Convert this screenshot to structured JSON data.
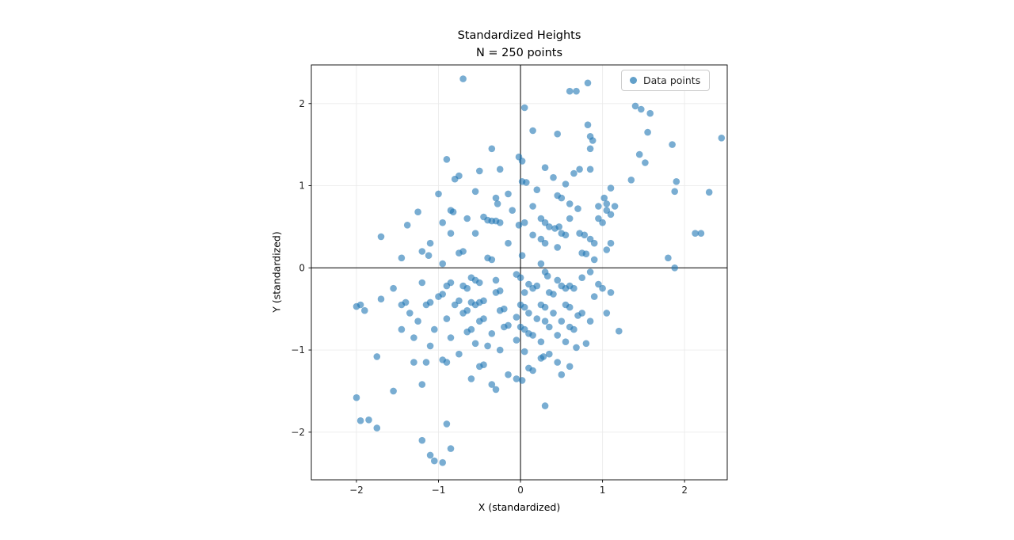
{
  "figure": {
    "title_line1": "Standardized Heights",
    "title_line2": "N = 250 points",
    "xlabel": "X (standardized)",
    "ylabel": "Y (standardized)",
    "legend_label": "Data points",
    "colors": {
      "marker": "#1f77b4",
      "marker_opacity": 0.6,
      "grid": "#ebebeb",
      "spine": "#000000",
      "refline": "#000000",
      "tick_text": "#262626"
    }
  },
  "chart_data": {
    "type": "scatter",
    "title": "Standardized Heights\nN = 250 points",
    "xlabel": "X (standardized)",
    "ylabel": "Y (standardized)",
    "legend": [
      "Data points"
    ],
    "legend_position": "upper right",
    "grid": true,
    "reference_lines": {
      "vertical_x": 0,
      "horizontal_y": 0
    },
    "xlim": [
      -2.55,
      2.52
    ],
    "ylim": [
      -2.58,
      2.47
    ],
    "xticks": [
      -2,
      -1,
      0,
      1,
      2
    ],
    "yticks": [
      -2,
      -1,
      0,
      1,
      2
    ],
    "n_points": 250,
    "series": [
      {
        "name": "Data points",
        "points": [
          [
            -0.7,
            2.3
          ],
          [
            0.82,
            2.25
          ],
          [
            0.6,
            2.15
          ],
          [
            0.68,
            2.15
          ],
          [
            1.4,
            1.97
          ],
          [
            1.47,
            1.93
          ],
          [
            0.05,
            1.95
          ],
          [
            1.58,
            1.88
          ],
          [
            0.82,
            1.74
          ],
          [
            0.15,
            1.67
          ],
          [
            1.55,
            1.65
          ],
          [
            2.45,
            1.58
          ],
          [
            1.85,
            1.5
          ],
          [
            0.45,
            1.63
          ],
          [
            0.85,
            1.6
          ],
          [
            0.88,
            1.55
          ],
          [
            -0.35,
            1.45
          ],
          [
            0.85,
            1.45
          ],
          [
            -0.02,
            1.35
          ],
          [
            0.02,
            1.3
          ],
          [
            -0.9,
            1.32
          ],
          [
            1.52,
            1.28
          ],
          [
            1.45,
            1.38
          ],
          [
            0.3,
            1.22
          ],
          [
            -0.5,
            1.18
          ],
          [
            -0.25,
            1.2
          ],
          [
            0.65,
            1.15
          ],
          [
            0.72,
            1.2
          ],
          [
            0.85,
            1.2
          ],
          [
            -0.75,
            1.12
          ],
          [
            -0.8,
            1.08
          ],
          [
            1.35,
            1.07
          ],
          [
            0.02,
            1.05
          ],
          [
            0.07,
            1.04
          ],
          [
            0.55,
            1.02
          ],
          [
            1.9,
            1.05
          ],
          [
            1.88,
            0.93
          ],
          [
            2.3,
            0.92
          ],
          [
            -0.55,
            0.93
          ],
          [
            1.1,
            0.97
          ],
          [
            -1.0,
            0.9
          ],
          [
            0.45,
            0.88
          ],
          [
            0.5,
            0.85
          ],
          [
            1.02,
            0.85
          ],
          [
            1.05,
            0.78
          ],
          [
            -0.3,
            0.85
          ],
          [
            -0.28,
            0.78
          ],
          [
            0.6,
            0.78
          ],
          [
            0.95,
            0.75
          ],
          [
            1.15,
            0.75
          ],
          [
            -0.85,
            0.7
          ],
          [
            -0.82,
            0.68
          ],
          [
            0.15,
            0.75
          ],
          [
            0.7,
            0.72
          ],
          [
            1.05,
            0.7
          ],
          [
            1.1,
            0.65
          ],
          [
            -1.25,
            0.68
          ],
          [
            -0.45,
            0.62
          ],
          [
            -0.4,
            0.58
          ],
          [
            -0.35,
            0.57
          ],
          [
            -0.3,
            0.57
          ],
          [
            -0.25,
            0.55
          ],
          [
            0.25,
            0.6
          ],
          [
            0.3,
            0.55
          ],
          [
            0.95,
            0.6
          ],
          [
            1.0,
            0.55
          ],
          [
            0.05,
            0.55
          ],
          [
            -0.02,
            0.52
          ],
          [
            0.35,
            0.5
          ],
          [
            0.42,
            0.48
          ],
          [
            0.47,
            0.5
          ],
          [
            -1.38,
            0.52
          ],
          [
            2.13,
            0.42
          ],
          [
            2.2,
            0.42
          ],
          [
            0.5,
            0.42
          ],
          [
            0.55,
            0.4
          ],
          [
            0.72,
            0.42
          ],
          [
            0.78,
            0.4
          ],
          [
            -0.55,
            0.42
          ],
          [
            -0.85,
            0.42
          ],
          [
            -1.7,
            0.38
          ],
          [
            0.85,
            0.35
          ],
          [
            0.9,
            0.3
          ],
          [
            1.1,
            0.3
          ],
          [
            0.25,
            0.35
          ],
          [
            0.3,
            0.3
          ],
          [
            -1.1,
            0.3
          ],
          [
            1.05,
            0.22
          ],
          [
            -0.7,
            0.2
          ],
          [
            -0.75,
            0.18
          ],
          [
            -1.2,
            0.2
          ],
          [
            -1.12,
            0.15
          ],
          [
            -1.45,
            0.12
          ],
          [
            0.75,
            0.18
          ],
          [
            0.8,
            0.17
          ],
          [
            1.8,
            0.12
          ],
          [
            -0.4,
            0.12
          ],
          [
            -0.35,
            0.1
          ],
          [
            0.02,
            0.15
          ],
          [
            1.88,
            0.0
          ],
          [
            -0.05,
            -0.08
          ],
          [
            0.0,
            -0.12
          ],
          [
            0.3,
            -0.05
          ],
          [
            0.33,
            -0.1
          ],
          [
            0.85,
            -0.05
          ],
          [
            0.75,
            -0.12
          ],
          [
            -0.6,
            -0.12
          ],
          [
            -0.55,
            -0.15
          ],
          [
            -0.5,
            -0.18
          ],
          [
            -0.85,
            -0.18
          ],
          [
            -0.9,
            -0.22
          ],
          [
            -0.65,
            -0.25
          ],
          [
            -0.7,
            -0.22
          ],
          [
            0.1,
            -0.2
          ],
          [
            0.15,
            -0.25
          ],
          [
            0.2,
            -0.22
          ],
          [
            0.5,
            -0.22
          ],
          [
            0.55,
            -0.25
          ],
          [
            0.6,
            -0.22
          ],
          [
            0.65,
            -0.25
          ],
          [
            0.95,
            -0.2
          ],
          [
            1.0,
            -0.25
          ],
          [
            -1.2,
            -0.18
          ],
          [
            -0.25,
            -0.28
          ],
          [
            -0.3,
            -0.3
          ],
          [
            -0.95,
            -0.32
          ],
          [
            -1.0,
            -0.35
          ],
          [
            0.05,
            -0.3
          ],
          [
            0.35,
            -0.3
          ],
          [
            0.4,
            -0.32
          ],
          [
            0.9,
            -0.35
          ],
          [
            1.1,
            -0.3
          ],
          [
            -1.95,
            -0.45
          ],
          [
            -2.0,
            -0.47
          ],
          [
            -1.9,
            -0.52
          ],
          [
            -1.7,
            -0.38
          ],
          [
            -0.45,
            -0.4
          ],
          [
            -0.5,
            -0.42
          ],
          [
            -0.55,
            -0.45
          ],
          [
            -0.6,
            -0.42
          ],
          [
            -0.75,
            -0.4
          ],
          [
            -0.8,
            -0.45
          ],
          [
            -1.1,
            -0.42
          ],
          [
            -1.15,
            -0.45
          ],
          [
            -1.4,
            -0.42
          ],
          [
            -1.45,
            -0.45
          ],
          [
            0.0,
            -0.45
          ],
          [
            0.05,
            -0.48
          ],
          [
            0.25,
            -0.45
          ],
          [
            0.3,
            -0.48
          ],
          [
            0.55,
            -0.45
          ],
          [
            0.6,
            -0.48
          ],
          [
            -0.2,
            -0.5
          ],
          [
            -0.25,
            -0.52
          ],
          [
            -0.65,
            -0.52
          ],
          [
            -0.7,
            -0.55
          ],
          [
            -1.35,
            -0.55
          ],
          [
            0.1,
            -0.55
          ],
          [
            0.4,
            -0.55
          ],
          [
            0.7,
            -0.58
          ],
          [
            0.75,
            -0.55
          ],
          [
            -0.05,
            -0.6
          ],
          [
            -0.45,
            -0.62
          ],
          [
            -0.5,
            -0.65
          ],
          [
            -0.9,
            -0.62
          ],
          [
            0.2,
            -0.62
          ],
          [
            0.3,
            -0.65
          ],
          [
            0.5,
            -0.65
          ],
          [
            -1.25,
            -0.65
          ],
          [
            -0.15,
            -0.7
          ],
          [
            -0.2,
            -0.72
          ],
          [
            0.0,
            -0.72
          ],
          [
            0.05,
            -0.75
          ],
          [
            0.35,
            -0.72
          ],
          [
            0.6,
            -0.72
          ],
          [
            0.65,
            -0.75
          ],
          [
            -0.6,
            -0.75
          ],
          [
            -0.65,
            -0.78
          ],
          [
            -1.05,
            -0.75
          ],
          [
            -1.45,
            -0.75
          ],
          [
            1.2,
            -0.77
          ],
          [
            -0.35,
            -0.8
          ],
          [
            0.1,
            -0.8
          ],
          [
            0.15,
            -0.82
          ],
          [
            0.45,
            -0.82
          ],
          [
            -0.85,
            -0.85
          ],
          [
            -1.3,
            -0.85
          ],
          [
            -0.05,
            -0.88
          ],
          [
            0.25,
            -0.9
          ],
          [
            0.55,
            -0.9
          ],
          [
            0.8,
            -0.92
          ],
          [
            -0.55,
            -0.92
          ],
          [
            -1.1,
            -0.95
          ],
          [
            0.68,
            -0.97
          ],
          [
            -0.25,
            -1.0
          ],
          [
            0.05,
            -1.02
          ],
          [
            0.35,
            -1.05
          ],
          [
            -0.75,
            -1.05
          ],
          [
            -1.75,
            -1.08
          ],
          [
            0.25,
            -1.1
          ],
          [
            0.28,
            -1.08
          ],
          [
            -1.3,
            -1.15
          ],
          [
            -0.95,
            -1.12
          ],
          [
            -0.9,
            -1.15
          ],
          [
            -0.45,
            -1.18
          ],
          [
            -0.5,
            -1.2
          ],
          [
            0.1,
            -1.22
          ],
          [
            0.15,
            -1.25
          ],
          [
            -1.15,
            -1.15
          ],
          [
            0.45,
            -1.15
          ],
          [
            -0.05,
            -1.35
          ],
          [
            -0.6,
            -1.35
          ],
          [
            -0.35,
            -1.42
          ],
          [
            -0.3,
            -1.48
          ],
          [
            0.02,
            -1.37
          ],
          [
            -1.55,
            -1.5
          ],
          [
            -1.2,
            -1.42
          ],
          [
            0.3,
            -1.68
          ],
          [
            -2.0,
            -1.58
          ],
          [
            -1.85,
            -1.85
          ],
          [
            -1.95,
            -1.86
          ],
          [
            -1.75,
            -1.95
          ],
          [
            -0.9,
            -1.9
          ],
          [
            -0.85,
            -2.2
          ],
          [
            -1.1,
            -2.28
          ],
          [
            -1.2,
            -2.1
          ],
          [
            -1.05,
            -2.35
          ],
          [
            -0.95,
            -2.37
          ],
          [
            -0.15,
            -1.3
          ],
          [
            0.5,
            -1.3
          ],
          [
            0.4,
            1.1
          ],
          [
            -0.15,
            0.9
          ],
          [
            0.2,
            0.95
          ],
          [
            -0.1,
            0.7
          ],
          [
            0.6,
            0.6
          ],
          [
            -0.95,
            0.55
          ],
          [
            -0.65,
            0.6
          ],
          [
            0.15,
            0.4
          ],
          [
            -0.15,
            0.3
          ],
          [
            0.45,
            0.25
          ],
          [
            0.9,
            0.1
          ],
          [
            -0.95,
            0.05
          ],
          [
            0.25,
            0.05
          ],
          [
            -0.3,
            -0.15
          ],
          [
            0.45,
            -0.15
          ],
          [
            -1.55,
            -0.25
          ],
          [
            1.05,
            -0.55
          ],
          [
            0.85,
            -0.65
          ],
          [
            -0.4,
            -0.95
          ],
          [
            0.6,
            -1.2
          ]
        ]
      }
    ]
  }
}
